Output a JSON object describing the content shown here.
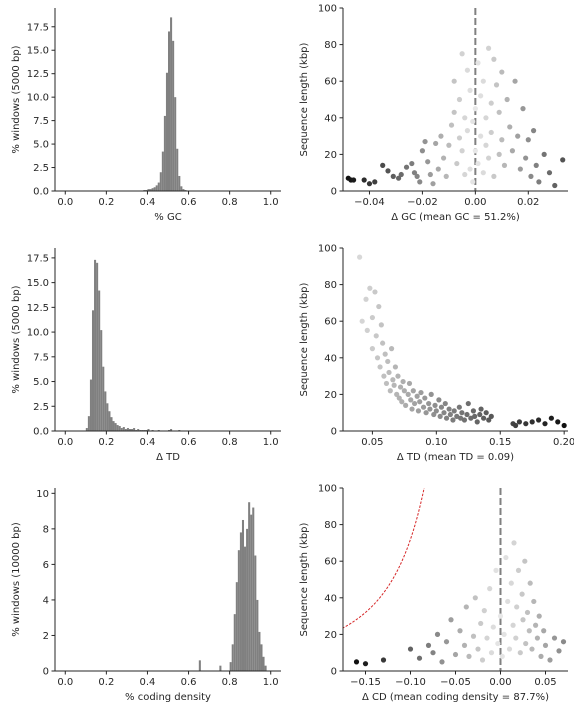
{
  "colors": {
    "bar": "#808080",
    "curve": "#d62728",
    "vline": "#808080",
    "axis": "#262626"
  },
  "chart_data": [
    {
      "id": "gc-hist",
      "type": "bar",
      "xlabel": "% GC",
      "ylabel": "% windows (5000 bp)",
      "xlim": [
        -0.05,
        1.05
      ],
      "ylim": [
        0,
        19.5
      ],
      "xticks": [
        "0.0",
        "0.2",
        "0.4",
        "0.6",
        "0.8",
        "1.0"
      ],
      "yticks": [
        "0.0",
        "2.5",
        "5.0",
        "7.5",
        "10.0",
        "12.5",
        "15.0",
        "17.5"
      ],
      "xtick_values": [
        0,
        0.2,
        0.4,
        0.6,
        0.8,
        1.0
      ],
      "ytick_values": [
        0,
        2.5,
        5,
        7.5,
        10,
        12.5,
        15,
        17.5
      ],
      "bin_width": 0.01,
      "bins": [
        0.38,
        0.39,
        0.4,
        0.41,
        0.42,
        0.43,
        0.44,
        0.45,
        0.46,
        0.47,
        0.48,
        0.49,
        0.5,
        0.51,
        0.52,
        0.53,
        0.54,
        0.55,
        0.56,
        0.57,
        0.58
      ],
      "values": [
        0.1,
        0.1,
        0.2,
        0.2,
        0.3,
        0.4,
        0.6,
        0.9,
        2.0,
        4.2,
        8.0,
        12.6,
        17.0,
        18.5,
        16.0,
        10.0,
        4.5,
        1.6,
        0.5,
        0.2,
        0.1
      ]
    },
    {
      "id": "gc-scatter",
      "type": "scatter",
      "xlabel": "Δ GC (mean GC = 51.2%)",
      "ylabel": "Sequence length (kbp)",
      "xlim": [
        -0.05,
        0.035
      ],
      "ylim": [
        0,
        100
      ],
      "xticks": [
        "−0.04",
        "−0.02",
        "0.00",
        "0.02"
      ],
      "yticks": [
        "0",
        "20",
        "40",
        "60",
        "80",
        "100"
      ],
      "xtick_values": [
        -0.04,
        -0.02,
        0,
        0.02
      ],
      "ytick_values": [
        0,
        20,
        40,
        60,
        80,
        100
      ],
      "vline": 0,
      "curve_k": 0.25,
      "points": [
        [
          -0.048,
          7
        ],
        [
          -0.047,
          6
        ],
        [
          -0.046,
          6
        ],
        [
          -0.042,
          6
        ],
        [
          -0.04,
          4
        ],
        [
          -0.038,
          5
        ],
        [
          -0.035,
          14
        ],
        [
          -0.033,
          11
        ],
        [
          -0.031,
          8
        ],
        [
          -0.029,
          7
        ],
        [
          -0.028,
          9
        ],
        [
          -0.026,
          13
        ],
        [
          -0.024,
          15
        ],
        [
          -0.023,
          10
        ],
        [
          -0.022,
          8
        ],
        [
          -0.021,
          5
        ],
        [
          -0.02,
          22
        ],
        [
          -0.019,
          27
        ],
        [
          -0.018,
          16
        ],
        [
          -0.017,
          9
        ],
        [
          -0.016,
          4
        ],
        [
          -0.015,
          26
        ],
        [
          -0.014,
          12
        ],
        [
          -0.013,
          30
        ],
        [
          -0.012,
          18
        ],
        [
          -0.011,
          8
        ],
        [
          -0.01,
          25
        ],
        [
          -0.009,
          36
        ],
        [
          -0.008,
          43
        ],
        [
          -0.008,
          60
        ],
        [
          -0.007,
          15
        ],
        [
          -0.006,
          29
        ],
        [
          -0.006,
          50
        ],
        [
          -0.005,
          75
        ],
        [
          -0.005,
          22
        ],
        [
          -0.004,
          9
        ],
        [
          -0.004,
          40
        ],
        [
          -0.003,
          33
        ],
        [
          -0.003,
          66
        ],
        [
          -0.002,
          12
        ],
        [
          -0.002,
          55
        ],
        [
          -0.001,
          38
        ],
        [
          -0.001,
          5
        ],
        [
          0.0,
          45
        ],
        [
          0.0,
          22
        ],
        [
          0.001,
          70
        ],
        [
          0.001,
          15
        ],
        [
          0.002,
          52
        ],
        [
          0.002,
          30
        ],
        [
          0.003,
          60
        ],
        [
          0.003,
          10
        ],
        [
          0.004,
          25
        ],
        [
          0.004,
          40
        ],
        [
          0.005,
          78
        ],
        [
          0.005,
          18
        ],
        [
          0.006,
          48
        ],
        [
          0.006,
          32
        ],
        [
          0.007,
          72
        ],
        [
          0.007,
          8
        ],
        [
          0.008,
          58
        ],
        [
          0.009,
          20
        ],
        [
          0.009,
          43
        ],
        [
          0.01,
          65
        ],
        [
          0.01,
          28
        ],
        [
          0.011,
          14
        ],
        [
          0.012,
          50
        ],
        [
          0.013,
          35
        ],
        [
          0.014,
          22
        ],
        [
          0.015,
          60
        ],
        [
          0.016,
          30
        ],
        [
          0.017,
          12
        ],
        [
          0.018,
          45
        ],
        [
          0.019,
          18
        ],
        [
          0.02,
          28
        ],
        [
          0.021,
          8
        ],
        [
          0.022,
          33
        ],
        [
          0.023,
          14
        ],
        [
          0.024,
          5
        ],
        [
          0.026,
          20
        ],
        [
          0.028,
          10
        ],
        [
          0.03,
          3
        ],
        [
          0.033,
          17
        ]
      ]
    },
    {
      "id": "td-hist",
      "type": "bar",
      "xlabel": "Δ TD",
      "ylabel": "% windows (5000 bp)",
      "xlim": [
        -0.05,
        1.05
      ],
      "ylim": [
        0,
        18.5
      ],
      "xticks": [
        "0.0",
        "0.2",
        "0.4",
        "0.6",
        "0.8",
        "1.0"
      ],
      "yticks": [
        "0.0",
        "2.5",
        "5.0",
        "7.5",
        "10.0",
        "12.5",
        "15.0",
        "17.5"
      ],
      "xtick_values": [
        0,
        0.2,
        0.4,
        0.6,
        0.8,
        1.0
      ],
      "ytick_values": [
        0,
        2.5,
        5,
        7.5,
        10,
        12.5,
        15,
        17.5
      ],
      "bin_width": 0.01,
      "bins": [
        0.1,
        0.11,
        0.12,
        0.13,
        0.14,
        0.15,
        0.16,
        0.17,
        0.18,
        0.19,
        0.2,
        0.21,
        0.22,
        0.23,
        0.24,
        0.25,
        0.26,
        0.27,
        0.28,
        0.29,
        0.3,
        0.31,
        0.32,
        0.33,
        0.34,
        0.35,
        0.36,
        0.37,
        0.38,
        0.39,
        0.4,
        0.42,
        0.45,
        0.5,
        0.51,
        0.55
      ],
      "values": [
        0.3,
        1.5,
        5.2,
        12.2,
        17.3,
        17.0,
        14.2,
        10.2,
        6.5,
        4.0,
        2.8,
        2.0,
        1.4,
        1.0,
        0.8,
        0.6,
        0.5,
        0.3,
        0.4,
        0.2,
        0.3,
        0.2,
        0.2,
        0.3,
        0.1,
        0.2,
        0.1,
        0.1,
        0.1,
        0.1,
        0.2,
        0.1,
        0.1,
        0.1,
        0.2,
        0.1
      ]
    },
    {
      "id": "td-scatter",
      "type": "scatter",
      "xlabel": "Δ TD (mean TD = 0.09)",
      "ylabel": "Sequence length (kbp)",
      "xlim": [
        0.027,
        0.203
      ],
      "ylim": [
        0,
        100
      ],
      "xticks": [
        "0.05",
        "0.10",
        "0.15",
        "0.20"
      ],
      "yticks": [
        "0",
        "20",
        "40",
        "60",
        "80",
        "100"
      ],
      "xtick_values": [
        0.05,
        0.1,
        0.15,
        0.2
      ],
      "ytick_values": [
        0,
        20,
        40,
        60,
        80,
        100
      ],
      "curve_k": 7.8,
      "points": [
        [
          0.04,
          95
        ],
        [
          0.042,
          60
        ],
        [
          0.045,
          72
        ],
        [
          0.046,
          55
        ],
        [
          0.048,
          78
        ],
        [
          0.05,
          62
        ],
        [
          0.05,
          45
        ],
        [
          0.052,
          76
        ],
        [
          0.053,
          52
        ],
        [
          0.054,
          40
        ],
        [
          0.055,
          68
        ],
        [
          0.056,
          35
        ],
        [
          0.057,
          58
        ],
        [
          0.058,
          48
        ],
        [
          0.059,
          30
        ],
        [
          0.06,
          42
        ],
        [
          0.061,
          26
        ],
        [
          0.062,
          38
        ],
        [
          0.063,
          32
        ],
        [
          0.064,
          22
        ],
        [
          0.065,
          45
        ],
        [
          0.066,
          28
        ],
        [
          0.067,
          25
        ],
        [
          0.068,
          35
        ],
        [
          0.069,
          20
        ],
        [
          0.07,
          30
        ],
        [
          0.071,
          18
        ],
        [
          0.072,
          24
        ],
        [
          0.073,
          16
        ],
        [
          0.074,
          27
        ],
        [
          0.075,
          22
        ],
        [
          0.076,
          14
        ],
        [
          0.078,
          20
        ],
        [
          0.079,
          26
        ],
        [
          0.08,
          17
        ],
        [
          0.081,
          12
        ],
        [
          0.082,
          22
        ],
        [
          0.083,
          15
        ],
        [
          0.085,
          19
        ],
        [
          0.086,
          11
        ],
        [
          0.087,
          16
        ],
        [
          0.088,
          21
        ],
        [
          0.09,
          13
        ],
        [
          0.091,
          18
        ],
        [
          0.092,
          10
        ],
        [
          0.094,
          15
        ],
        [
          0.095,
          12
        ],
        [
          0.096,
          20
        ],
        [
          0.098,
          9
        ],
        [
          0.099,
          14
        ],
        [
          0.1,
          11
        ],
        [
          0.102,
          17
        ],
        [
          0.103,
          8
        ],
        [
          0.104,
          13
        ],
        [
          0.106,
          10
        ],
        [
          0.107,
          15
        ],
        [
          0.108,
          7
        ],
        [
          0.11,
          12
        ],
        [
          0.111,
          9
        ],
        [
          0.113,
          6
        ],
        [
          0.114,
          11
        ],
        [
          0.116,
          8
        ],
        [
          0.118,
          13
        ],
        [
          0.119,
          7
        ],
        [
          0.12,
          10
        ],
        [
          0.122,
          6
        ],
        [
          0.124,
          9
        ],
        [
          0.125,
          15
        ],
        [
          0.127,
          7
        ],
        [
          0.129,
          11
        ],
        [
          0.13,
          8
        ],
        [
          0.132,
          5
        ],
        [
          0.134,
          9
        ],
        [
          0.135,
          12
        ],
        [
          0.137,
          7
        ],
        [
          0.139,
          10
        ],
        [
          0.141,
          6
        ],
        [
          0.143,
          8
        ],
        [
          0.16,
          4
        ],
        [
          0.162,
          3
        ],
        [
          0.165,
          5
        ],
        [
          0.17,
          4
        ],
        [
          0.175,
          5
        ],
        [
          0.18,
          6
        ],
        [
          0.185,
          4
        ],
        [
          0.19,
          7
        ],
        [
          0.195,
          5
        ],
        [
          0.2,
          3
        ]
      ]
    },
    {
      "id": "cd-hist",
      "type": "bar",
      "xlabel": "% coding density",
      "ylabel": "% windows (10000 bp)",
      "xlim": [
        -0.05,
        1.05
      ],
      "ylim": [
        0,
        10.3
      ],
      "xticks": [
        "0.0",
        "0.2",
        "0.4",
        "0.6",
        "0.8",
        "1.0"
      ],
      "yticks": [
        "0",
        "2",
        "4",
        "6",
        "8",
        "10"
      ],
      "xtick_values": [
        0,
        0.2,
        0.4,
        0.6,
        0.8,
        1.0
      ],
      "ytick_values": [
        0,
        2,
        4,
        6,
        8,
        10
      ],
      "bin_width": 0.01,
      "bins": [
        0.65,
        0.75,
        0.8,
        0.81,
        0.82,
        0.83,
        0.84,
        0.85,
        0.86,
        0.87,
        0.88,
        0.89,
        0.9,
        0.91,
        0.92,
        0.93,
        0.94,
        0.95,
        0.96,
        0.97
      ],
      "values": [
        0.6,
        0.3,
        0.5,
        1.5,
        3.2,
        5.0,
        6.8,
        7.8,
        8.5,
        7.0,
        8.0,
        9.5,
        8.8,
        9.2,
        6.5,
        4.0,
        2.2,
        1.5,
        0.8,
        0.3
      ]
    },
    {
      "id": "cd-scatter",
      "type": "scatter",
      "xlabel": "Δ CD (mean coding density = 87.7%)",
      "ylabel": "Sequence length (kbp)",
      "xlim": [
        -0.175,
        0.075
      ],
      "ylim": [
        0,
        100
      ],
      "xticks": [
        "−0.15",
        "−0.10",
        "−0.05",
        "0.00",
        "0.05"
      ],
      "yticks": [
        "0",
        "20",
        "40",
        "60",
        "80",
        "100"
      ],
      "xtick_values": [
        -0.15,
        -0.1,
        -0.05,
        0,
        0.05
      ],
      "ytick_values": [
        0,
        20,
        40,
        60,
        80,
        100
      ],
      "vline": 0,
      "curve_k": 0.72,
      "points": [
        [
          -0.16,
          5
        ],
        [
          -0.15,
          4
        ],
        [
          -0.13,
          6
        ],
        [
          -0.1,
          12
        ],
        [
          -0.09,
          7
        ],
        [
          -0.08,
          14
        ],
        [
          -0.075,
          10
        ],
        [
          -0.07,
          20
        ],
        [
          -0.065,
          5
        ],
        [
          -0.06,
          16
        ],
        [
          -0.055,
          28
        ],
        [
          -0.05,
          9
        ],
        [
          -0.045,
          22
        ],
        [
          -0.04,
          14
        ],
        [
          -0.038,
          35
        ],
        [
          -0.035,
          8
        ],
        [
          -0.03,
          19
        ],
        [
          -0.028,
          40
        ],
        [
          -0.025,
          12
        ],
        [
          -0.022,
          26
        ],
        [
          -0.02,
          6
        ],
        [
          -0.018,
          33
        ],
        [
          -0.015,
          18
        ],
        [
          -0.012,
          45
        ],
        [
          -0.01,
          10
        ],
        [
          -0.008,
          24
        ],
        [
          -0.005,
          55
        ],
        [
          -0.003,
          15
        ],
        [
          0.0,
          30
        ],
        [
          0.002,
          8
        ],
        [
          0.004,
          20
        ],
        [
          0.006,
          62
        ],
        [
          0.008,
          38
        ],
        [
          0.01,
          12
        ],
        [
          0.012,
          48
        ],
        [
          0.014,
          25
        ],
        [
          0.015,
          70
        ],
        [
          0.017,
          18
        ],
        [
          0.018,
          35
        ],
        [
          0.02,
          55
        ],
        [
          0.022,
          10
        ],
        [
          0.024,
          42
        ],
        [
          0.025,
          28
        ],
        [
          0.027,
          60
        ],
        [
          0.028,
          15
        ],
        [
          0.03,
          32
        ],
        [
          0.032,
          22
        ],
        [
          0.033,
          48
        ],
        [
          0.035,
          12
        ],
        [
          0.037,
          38
        ],
        [
          0.039,
          25
        ],
        [
          0.041,
          18
        ],
        [
          0.043,
          30
        ],
        [
          0.045,
          8
        ],
        [
          0.048,
          22
        ],
        [
          0.05,
          14
        ],
        [
          0.055,
          6
        ],
        [
          0.06,
          18
        ],
        [
          0.065,
          11
        ],
        [
          0.07,
          16
        ]
      ]
    }
  ]
}
